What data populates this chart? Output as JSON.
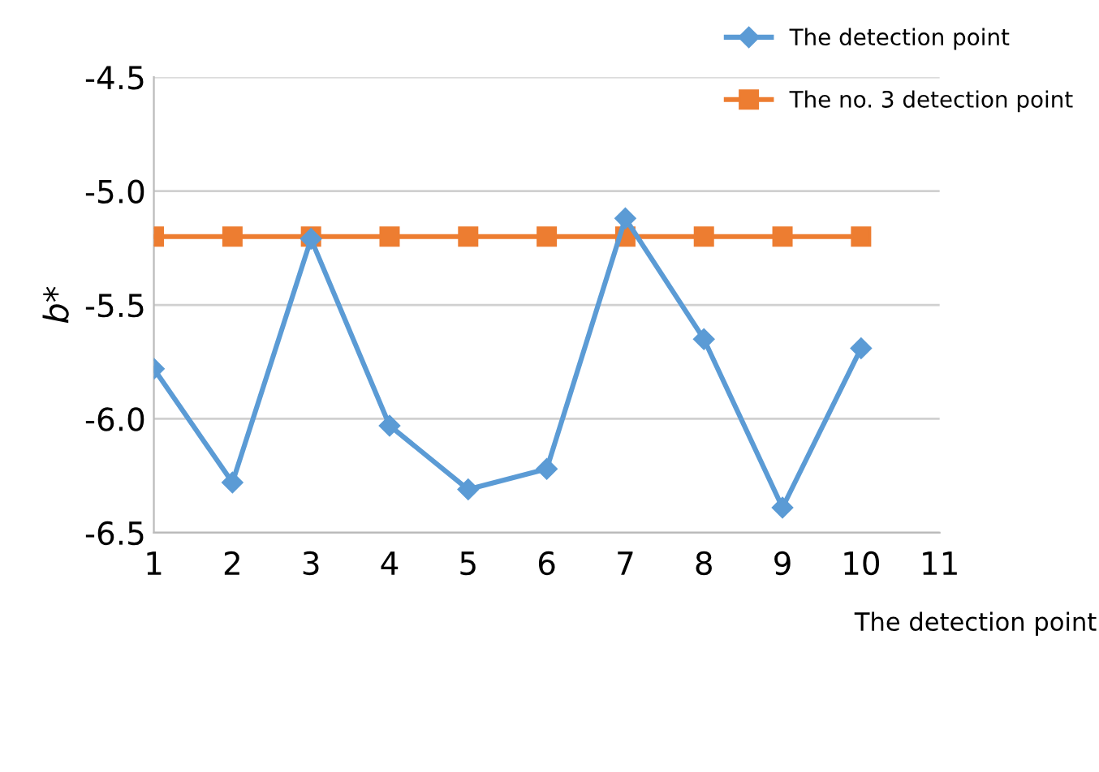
{
  "chart_data": {
    "type": "line",
    "ylabel": "b*",
    "xlabel": "The detection point",
    "x": [
      1,
      2,
      3,
      4,
      5,
      6,
      7,
      8,
      9,
      10
    ],
    "series": [
      {
        "name": "The detection point",
        "color": "#5b9bd5",
        "marker": "diamond",
        "values": [
          -5.78,
          -6.28,
          -5.21,
          -6.03,
          -6.31,
          -6.22,
          -5.12,
          -5.65,
          -6.39,
          -5.69
        ]
      },
      {
        "name": "The no. 3 detection point",
        "color": "#ed7d31",
        "marker": "square",
        "values": [
          -5.2,
          -5.2,
          -5.2,
          -5.2,
          -5.2,
          -5.2,
          -5.2,
          -5.2,
          -5.2,
          -5.2
        ]
      }
    ],
    "xlim": [
      1,
      11
    ],
    "xticks": [
      1,
      2,
      3,
      4,
      5,
      6,
      7,
      8,
      9,
      10,
      11
    ],
    "ylim": [
      -6.5,
      -4.5
    ],
    "yticks": [
      {
        "value": -6.5,
        "label": "-6.5"
      },
      {
        "value": -6.0,
        "label": "-6.0"
      },
      {
        "value": -5.5,
        "label": "-5.5"
      },
      {
        "value": -5.0,
        "label": "-5.0"
      },
      {
        "value": -4.5,
        "label": "-4.5"
      }
    ],
    "grid": "y",
    "legend": "top right"
  }
}
